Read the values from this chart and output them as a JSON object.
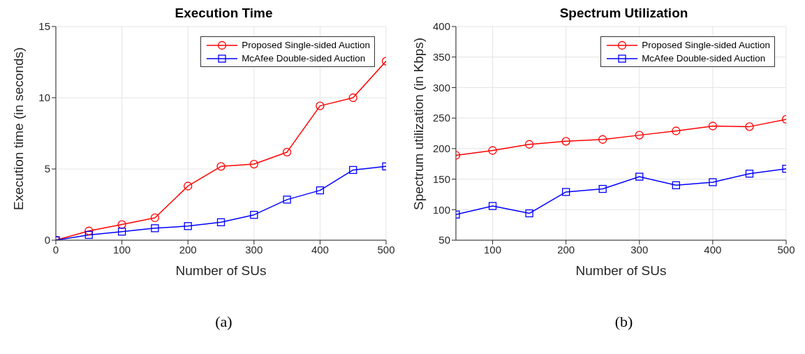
{
  "chart_data": [
    {
      "type": "line",
      "title": "Execution Time",
      "xlabel": "Number of SUs",
      "ylabel": "Execution time (in seconds)",
      "annotations": [
        "(a)"
      ],
      "x": [
        0,
        50,
        100,
        150,
        200,
        250,
        300,
        350,
        400,
        450,
        500
      ],
      "xlim": [
        0,
        500
      ],
      "xticks": [
        0,
        100,
        200,
        300,
        400,
        500
      ],
      "ylim": [
        0,
        15
      ],
      "yticks": [
        0,
        5,
        10,
        15
      ],
      "grid": true,
      "legend": "top right",
      "line_style": "solid",
      "series": [
        {
          "name": "Proposed Single-sided Auction",
          "color": "#ff0000",
          "marker": "circle",
          "values": [
            0,
            0.65,
            1.1,
            1.57,
            3.8,
            5.18,
            5.34,
            6.18,
            9.43,
            10.0,
            12.57
          ]
        },
        {
          "name": "McAfee Double-sided Auction",
          "color": "#0000ff",
          "marker": "square",
          "values": [
            0,
            0.37,
            0.6,
            0.84,
            0.99,
            1.26,
            1.78,
            2.85,
            3.5,
            4.93,
            5.18
          ]
        }
      ]
    },
    {
      "type": "line",
      "title": "Spectrum Utilization",
      "xlabel": "Number of SUs",
      "ylabel": "Spectrum utilization (in Kbps)",
      "annotations": [
        "(b)"
      ],
      "x": [
        50,
        100,
        150,
        200,
        250,
        300,
        350,
        400,
        450,
        500
      ],
      "xlim": [
        50,
        500
      ],
      "xticks": [
        100,
        200,
        300,
        400,
        500
      ],
      "ylim": [
        50,
        400
      ],
      "yticks": [
        50,
        100,
        150,
        200,
        250,
        300,
        350,
        400
      ],
      "grid": true,
      "legend": "top right",
      "line_style": "solid",
      "series": [
        {
          "name": "Proposed Single-sided Auction",
          "color": "#ff0000",
          "marker": "circle",
          "values": [
            189,
            197,
            207,
            212,
            215,
            222,
            229,
            237,
            236,
            248
          ]
        },
        {
          "name": "McAfee Double-sided Auction",
          "color": "#0000ff",
          "marker": "square",
          "values": [
            92,
            106,
            94,
            129,
            134,
            154,
            140,
            145,
            159,
            167
          ]
        }
      ]
    }
  ]
}
